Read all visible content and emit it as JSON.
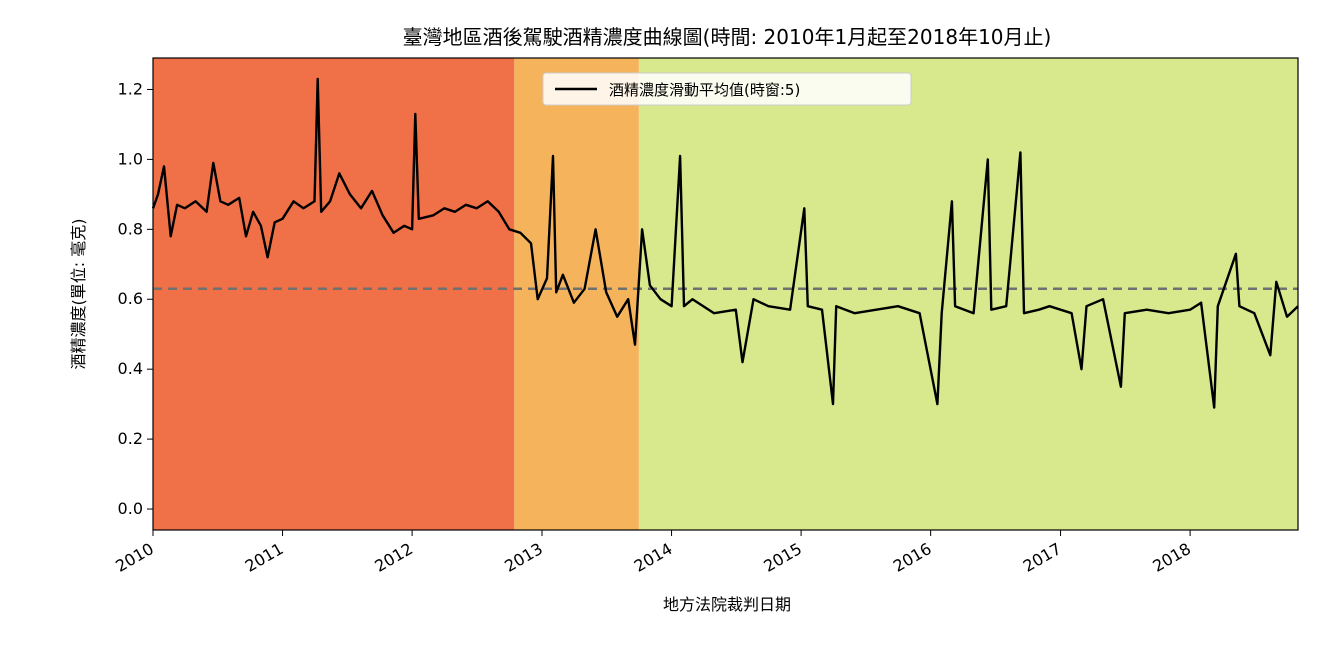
{
  "chart_data": {
    "type": "line",
    "title": "臺灣地區酒後駕駛酒精濃度曲線圖(時間: 2010年1月起至2018年10月止)",
    "xlabel": "地方法院裁判日期",
    "ylabel": "酒精濃度(單位: 毫克)",
    "xlim": [
      "2010-01-01",
      "2018-11-01"
    ],
    "ylim": [
      -0.06,
      1.29
    ],
    "x_ticks": [
      "2010",
      "2011",
      "2012",
      "2013",
      "2014",
      "2015",
      "2016",
      "2017",
      "2018"
    ],
    "y_ticks": [
      "0.0",
      "0.2",
      "0.4",
      "0.6",
      "0.8",
      "1.0",
      "1.2"
    ],
    "legend": {
      "position": "top-center",
      "entries": [
        "酒精濃度滑動平均值(時窗:5)"
      ]
    },
    "reference_line": {
      "y": 0.63,
      "style": "dashed"
    },
    "background_bands": [
      {
        "from": "2010-01-01",
        "to": "2012-10-15",
        "color": "#f07048",
        "note": "high"
      },
      {
        "from": "2012-10-15",
        "to": "2013-10-01",
        "color": "#f5b45c",
        "note": "transition"
      },
      {
        "from": "2013-10-01",
        "to": "2018-11-01",
        "color": "#d8e88c",
        "note": "low"
      }
    ],
    "series": [
      {
        "name": "酒精濃度滑動平均值(時窗:5)",
        "color": "#000000",
        "points": [
          [
            "2010-01-01",
            0.86
          ],
          [
            "2010-01-15",
            0.9
          ],
          [
            "2010-02-01",
            0.98
          ],
          [
            "2010-02-20",
            0.78
          ],
          [
            "2010-03-10",
            0.87
          ],
          [
            "2010-04-01",
            0.86
          ],
          [
            "2010-05-01",
            0.88
          ],
          [
            "2010-06-01",
            0.85
          ],
          [
            "2010-06-20",
            0.99
          ],
          [
            "2010-07-10",
            0.88
          ],
          [
            "2010-08-01",
            0.87
          ],
          [
            "2010-09-01",
            0.89
          ],
          [
            "2010-09-20",
            0.78
          ],
          [
            "2010-10-10",
            0.85
          ],
          [
            "2010-11-01",
            0.81
          ],
          [
            "2010-11-20",
            0.72
          ],
          [
            "2010-12-10",
            0.82
          ],
          [
            "2011-01-01",
            0.83
          ],
          [
            "2011-02-01",
            0.88
          ],
          [
            "2011-03-01",
            0.86
          ],
          [
            "2011-04-01",
            0.88
          ],
          [
            "2011-04-10",
            1.23
          ],
          [
            "2011-04-20",
            0.85
          ],
          [
            "2011-05-15",
            0.88
          ],
          [
            "2011-06-10",
            0.96
          ],
          [
            "2011-07-10",
            0.9
          ],
          [
            "2011-08-10",
            0.86
          ],
          [
            "2011-09-10",
            0.91
          ],
          [
            "2011-10-10",
            0.84
          ],
          [
            "2011-11-10",
            0.79
          ],
          [
            "2011-12-10",
            0.81
          ],
          [
            "2012-01-01",
            0.8
          ],
          [
            "2012-01-10",
            1.13
          ],
          [
            "2012-01-20",
            0.83
          ],
          [
            "2012-03-01",
            0.84
          ],
          [
            "2012-04-01",
            0.86
          ],
          [
            "2012-05-01",
            0.85
          ],
          [
            "2012-06-01",
            0.87
          ],
          [
            "2012-07-01",
            0.86
          ],
          [
            "2012-08-01",
            0.88
          ],
          [
            "2012-09-01",
            0.85
          ],
          [
            "2012-10-01",
            0.8
          ],
          [
            "2012-11-01",
            0.79
          ],
          [
            "2012-12-01",
            0.76
          ],
          [
            "2012-12-20",
            0.6
          ],
          [
            "2013-01-15",
            0.66
          ],
          [
            "2013-02-01",
            1.01
          ],
          [
            "2013-02-10",
            0.62
          ],
          [
            "2013-03-01",
            0.67
          ],
          [
            "2013-04-01",
            0.59
          ],
          [
            "2013-05-01",
            0.63
          ],
          [
            "2013-06-01",
            0.8
          ],
          [
            "2013-07-01",
            0.62
          ],
          [
            "2013-08-01",
            0.55
          ],
          [
            "2013-09-01",
            0.6
          ],
          [
            "2013-09-20",
            0.47
          ],
          [
            "2013-10-10",
            0.8
          ],
          [
            "2013-11-01",
            0.64
          ],
          [
            "2013-12-01",
            0.6
          ],
          [
            "2014-01-01",
            0.58
          ],
          [
            "2014-01-25",
            1.01
          ],
          [
            "2014-02-05",
            0.58
          ],
          [
            "2014-03-01",
            0.6
          ],
          [
            "2014-05-01",
            0.56
          ],
          [
            "2014-07-01",
            0.57
          ],
          [
            "2014-07-20",
            0.42
          ],
          [
            "2014-08-20",
            0.6
          ],
          [
            "2014-10-01",
            0.58
          ],
          [
            "2014-12-01",
            0.57
          ],
          [
            "2015-01-10",
            0.86
          ],
          [
            "2015-01-20",
            0.58
          ],
          [
            "2015-03-01",
            0.57
          ],
          [
            "2015-04-01",
            0.3
          ],
          [
            "2015-04-10",
            0.58
          ],
          [
            "2015-06-01",
            0.56
          ],
          [
            "2015-08-01",
            0.57
          ],
          [
            "2015-10-01",
            0.58
          ],
          [
            "2015-12-01",
            0.56
          ],
          [
            "2016-01-20",
            0.3
          ],
          [
            "2016-02-01",
            0.56
          ],
          [
            "2016-03-01",
            0.88
          ],
          [
            "2016-03-10",
            0.58
          ],
          [
            "2016-05-01",
            0.56
          ],
          [
            "2016-06-10",
            1.0
          ],
          [
            "2016-06-20",
            0.57
          ],
          [
            "2016-08-01",
            0.58
          ],
          [
            "2016-09-10",
            1.02
          ],
          [
            "2016-09-20",
            0.56
          ],
          [
            "2016-11-01",
            0.57
          ],
          [
            "2016-12-01",
            0.58
          ],
          [
            "2017-02-01",
            0.56
          ],
          [
            "2017-03-01",
            0.4
          ],
          [
            "2017-03-15",
            0.58
          ],
          [
            "2017-05-01",
            0.6
          ],
          [
            "2017-06-20",
            0.35
          ],
          [
            "2017-07-01",
            0.56
          ],
          [
            "2017-09-01",
            0.57
          ],
          [
            "2017-11-01",
            0.56
          ],
          [
            "2018-01-01",
            0.57
          ],
          [
            "2018-02-01",
            0.59
          ],
          [
            "2018-03-10",
            0.29
          ],
          [
            "2018-03-20",
            0.58
          ],
          [
            "2018-05-10",
            0.73
          ],
          [
            "2018-05-20",
            0.58
          ],
          [
            "2018-07-01",
            0.56
          ],
          [
            "2018-08-15",
            0.44
          ],
          [
            "2018-09-01",
            0.65
          ],
          [
            "2018-10-01",
            0.55
          ],
          [
            "2018-11-01",
            0.58
          ]
        ]
      }
    ]
  }
}
